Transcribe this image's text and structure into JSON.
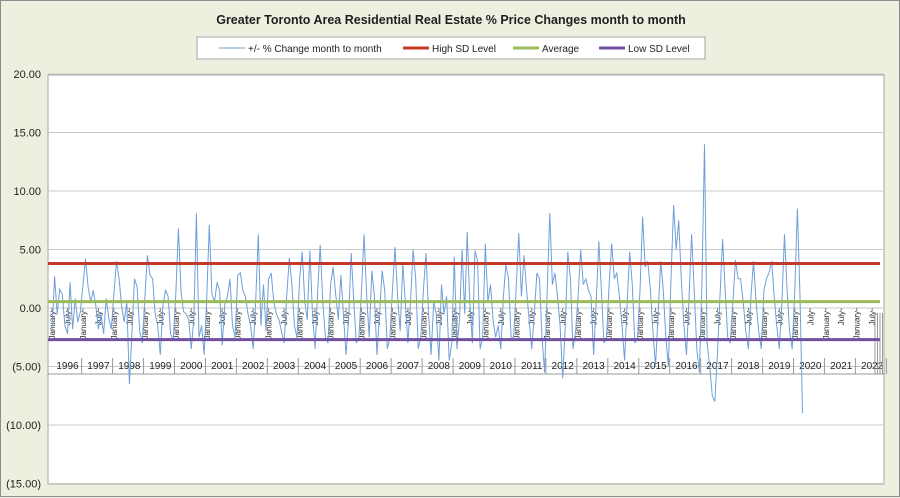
{
  "chart_data": {
    "type": "line",
    "title": "Greater Toronto Area Residential Real Estate % Price Changes month to month",
    "ylim": [
      -15,
      20
    ],
    "y_ticks": [
      "20.00",
      "15.00",
      "10.00",
      "5.00",
      "0.00",
      "(5.00)",
      "(10.00)",
      "(15.00)"
    ],
    "x_start": "1996-01",
    "x_end": "2022-12",
    "month_tick_labels": [
      "January",
      "July"
    ],
    "years": [
      "1996",
      "1997",
      "1998",
      "1999",
      "2000",
      "2001",
      "2002",
      "2003",
      "2004",
      "2005",
      "2006",
      "2007",
      "2008",
      "2009",
      "2010",
      "2011",
      "2012",
      "2013",
      "2014",
      "2015",
      "2016",
      "2017",
      "2018",
      "2019",
      "2020",
      "2021",
      "2022"
    ],
    "grid": true,
    "legend_position": "top",
    "series": [
      {
        "name": "+/- % Change month to month",
        "color": "#6f9fd8",
        "kind": "monthly",
        "values_by_year": {
          "1996": [
            -2.0,
            2.7,
            -0.5,
            1.6,
            1.2,
            -1.5,
            -2.2,
            2.2,
            -1.8,
            0.8,
            -1.2,
            -0.3
          ],
          "1997": [
            2.0,
            4.2,
            1.8,
            0.5,
            1.5,
            0.2,
            -1.8,
            -0.5,
            -2.2,
            0.8,
            -0.8,
            -1.8
          ],
          "1998": [
            1.2,
            4.0,
            2.5,
            0.2,
            -1.2,
            0.5,
            -6.5,
            -2.0,
            2.5,
            1.8,
            -2.0,
            -3.0
          ],
          "1999": [
            0.8,
            4.5,
            2.8,
            2.5,
            -0.5,
            -1.5,
            -4.0,
            0.2,
            1.5,
            1.0,
            -2.2,
            -2.8
          ],
          "2000": [
            1.2,
            6.8,
            1.5,
            -0.3,
            -0.5,
            -1.0,
            -3.5,
            -0.8,
            8.1,
            -2.5,
            -1.5,
            -4.0
          ],
          "2001": [
            1.0,
            7.1,
            1.2,
            0.5,
            2.2,
            1.5,
            -3.2,
            0.3,
            1.0,
            2.5,
            -1.5,
            -2.5
          ],
          "2002": [
            2.8,
            3.0,
            1.5,
            1.0,
            -0.5,
            -1.5,
            -3.5,
            0.8,
            6.3,
            -1.5,
            2.0,
            -2.0
          ],
          "2003": [
            2.5,
            3.0,
            0.5,
            -0.5,
            -1.0,
            -2.0,
            -3.0,
            1.0,
            4.3,
            2.0,
            -1.5,
            -2.5
          ],
          "2004": [
            2.5,
            4.8,
            0.5,
            -1.0,
            4.9,
            -0.5,
            -3.5,
            1.5,
            5.4,
            0.5,
            -2.5,
            -3.0
          ],
          "2005": [
            2.0,
            3.5,
            1.2,
            -1.0,
            2.8,
            -0.5,
            -4.0,
            -1.0,
            4.7,
            0.5,
            -3.0,
            -2.5
          ],
          "2006": [
            1.5,
            6.3,
            1.0,
            -2.5,
            3.2,
            1.0,
            -4.0,
            -0.5,
            3.2,
            1.5,
            -3.5,
            -2.5
          ],
          "2007": [
            1.5,
            5.2,
            1.0,
            -2.0,
            3.8,
            0.5,
            -3.0,
            0.5,
            5.0,
            2.5,
            -3.5,
            -2.5
          ],
          "2008": [
            1.5,
            4.7,
            -0.5,
            -4.0,
            0.5,
            -0.5,
            -4.5,
            2.0,
            -0.5,
            1.0,
            -4.5,
            -3.0
          ],
          "2009": [
            4.4,
            -3.5,
            -1.0,
            5.0,
            -0.5,
            6.5,
            0.5,
            -3.0,
            4.9,
            4.0,
            -3.5,
            -2.5
          ],
          "2010": [
            5.5,
            0.5,
            2.0,
            -1.0,
            -2.5,
            -1.5,
            -3.5,
            1.0,
            3.7,
            2.5,
            -2.5,
            -2.5
          ],
          "2011": [
            2.0,
            6.4,
            1.0,
            4.5,
            1.5,
            -1.0,
            -3.5,
            -0.5,
            3.0,
            2.5,
            -2.5,
            -5.5
          ],
          "2012": [
            1.5,
            8.1,
            2.0,
            3.0,
            1.0,
            -1.5,
            -6.0,
            -1.5,
            4.8,
            2.5,
            -3.5,
            -2.0
          ],
          "2013": [
            1.0,
            5.0,
            2.0,
            2.5,
            1.5,
            1.0,
            -4.0,
            0.5,
            5.7,
            1.5,
            -3.0,
            -2.5
          ],
          "2014": [
            2.0,
            5.5,
            2.5,
            3.0,
            1.0,
            -1.5,
            -4.5,
            0.5,
            4.8,
            2.0,
            -3.0,
            -2.5
          ],
          "2015": [
            1.5,
            7.8,
            3.5,
            4.0,
            1.5,
            -2.0,
            -5.0,
            -0.5,
            4.0,
            1.5,
            -2.5,
            -5.0
          ],
          "2016": [
            2.5,
            8.8,
            5.0,
            7.5,
            2.5,
            -1.5,
            -4.0,
            1.0,
            6.3,
            1.5,
            -3.5,
            -5.5
          ],
          "2017": [
            2.0,
            14.0,
            -3.0,
            -5.0,
            -7.5,
            -8.0,
            -4.0,
            1.0,
            5.9,
            1.5,
            -2.5,
            -3.0
          ],
          "2018": [
            0.5,
            4.1,
            2.5,
            2.5,
            0.5,
            -2.0,
            -3.5,
            1.0,
            4.0,
            0.5,
            -2.0,
            -3.5
          ],
          "2019": [
            1.5,
            2.5,
            3.0,
            4.0,
            1.0,
            -1.5,
            -3.5,
            0.5,
            6.3,
            1.5,
            -2.0,
            -3.5
          ],
          "2020": [
            1.5,
            8.5,
            1.0,
            -9.0
          ]
        }
      },
      {
        "name": "High SD Level",
        "color": "#c0392b",
        "kind": "constant",
        "value": 3.8
      },
      {
        "name": "Average",
        "color": "#9bbb59",
        "kind": "constant",
        "value": 0.55
      },
      {
        "name": "Low SD Level",
        "color": "#7050a0",
        "kind": "constant",
        "value": -2.7
      }
    ]
  }
}
